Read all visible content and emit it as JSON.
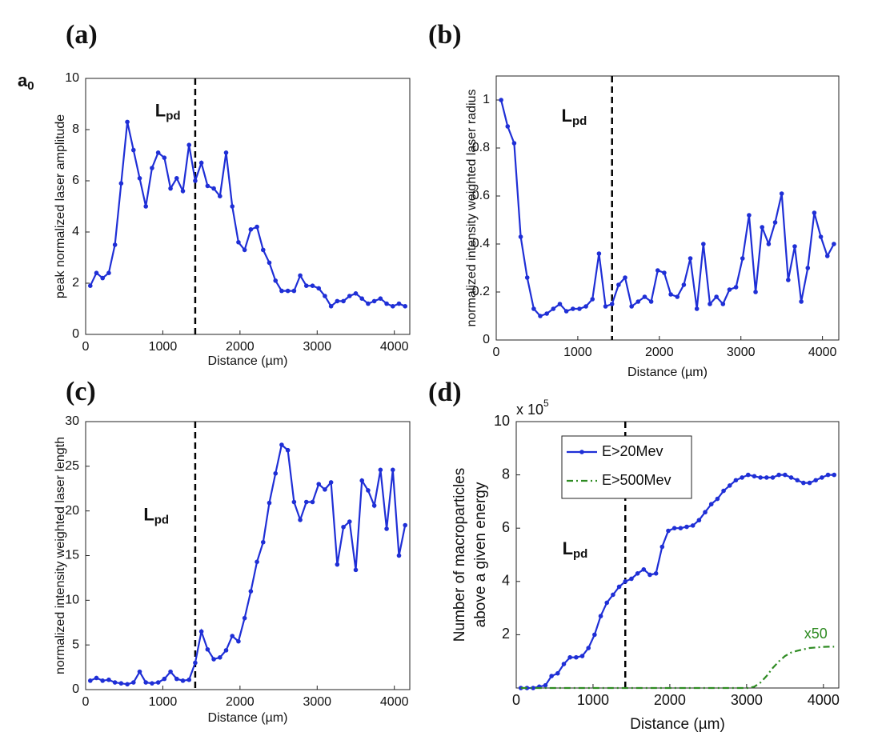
{
  "chart_data": [
    {
      "type": "line",
      "panel_label": "(a)",
      "ylabel": [
        "peak normalized laser amplitude"
      ],
      "xlabel": "Distance (µm)",
      "ylabel_symbol": {
        "text": "a",
        "subscript": "0"
      },
      "annotation": {
        "text": "L",
        "subscript": "pd",
        "x": 900,
        "y": 8.7
      },
      "vline": 1420,
      "xlim": [
        0,
        4200
      ],
      "xticks": [
        0,
        1000,
        2000,
        3000,
        4000
      ],
      "ylim": [
        0,
        10
      ],
      "yticks": [
        0,
        2,
        4,
        6,
        8,
        10
      ],
      "x": [
        60,
        140,
        220,
        300,
        380,
        460,
        540,
        620,
        700,
        780,
        860,
        940,
        1020,
        1100,
        1180,
        1260,
        1340,
        1420,
        1500,
        1580,
        1660,
        1740,
        1820,
        1900,
        1980,
        2060,
        2140,
        2220,
        2300,
        2380,
        2460,
        2540,
        2620,
        2700,
        2780,
        2860,
        2940,
        3020,
        3100,
        3180,
        3260,
        3340,
        3420,
        3500,
        3580,
        3660,
        3740,
        3820,
        3900,
        3980,
        4060,
        4140
      ],
      "series": [
        {
          "color": "#1f2fd6",
          "markers": true,
          "dash": "solid",
          "values": [
            1.9,
            2.4,
            2.2,
            2.4,
            3.5,
            5.9,
            8.3,
            7.2,
            6.1,
            5.0,
            6.5,
            7.1,
            6.9,
            5.7,
            6.1,
            5.6,
            7.4,
            6.0,
            6.7,
            5.8,
            5.7,
            5.4,
            7.1,
            5.0,
            3.6,
            3.3,
            4.1,
            4.2,
            3.3,
            2.8,
            2.1,
            1.7,
            1.7,
            1.7,
            2.3,
            1.9,
            1.9,
            1.8,
            1.5,
            1.1,
            1.3,
            1.3,
            1.5,
            1.6,
            1.4,
            1.2,
            1.3,
            1.4,
            1.2,
            1.1,
            1.2,
            1.1
          ]
        }
      ]
    },
    {
      "type": "line",
      "panel_label": "(b)",
      "ylabel": [
        "normalized intensity weighted laser radius"
      ],
      "xlabel": "Distance (µm)",
      "annotation": {
        "text": "L",
        "subscript": "pd",
        "x": 800,
        "y": 0.93
      },
      "vline": 1420,
      "xlim": [
        0,
        4200
      ],
      "xticks": [
        0,
        1000,
        2000,
        3000,
        4000
      ],
      "ylim": [
        0,
        1.1
      ],
      "yticks": [
        0,
        0.2,
        0.4,
        0.6,
        0.8,
        1
      ],
      "x": [
        60,
        140,
        220,
        300,
        380,
        460,
        540,
        620,
        700,
        780,
        860,
        940,
        1020,
        1100,
        1180,
        1260,
        1340,
        1420,
        1500,
        1580,
        1660,
        1740,
        1820,
        1900,
        1980,
        2060,
        2140,
        2220,
        2300,
        2380,
        2460,
        2540,
        2620,
        2700,
        2780,
        2860,
        2940,
        3020,
        3100,
        3180,
        3260,
        3340,
        3420,
        3500,
        3580,
        3660,
        3740,
        3820,
        3900,
        3980,
        4060,
        4140
      ],
      "series": [
        {
          "color": "#1f2fd6",
          "markers": true,
          "dash": "solid",
          "values": [
            1.0,
            0.89,
            0.82,
            0.43,
            0.26,
            0.13,
            0.1,
            0.11,
            0.13,
            0.15,
            0.12,
            0.13,
            0.13,
            0.14,
            0.17,
            0.36,
            0.14,
            0.15,
            0.23,
            0.26,
            0.14,
            0.16,
            0.18,
            0.16,
            0.29,
            0.28,
            0.19,
            0.18,
            0.23,
            0.34,
            0.13,
            0.4,
            0.15,
            0.18,
            0.15,
            0.21,
            0.22,
            0.34,
            0.52,
            0.2,
            0.47,
            0.4,
            0.49,
            0.61,
            0.25,
            0.39,
            0.16,
            0.3,
            0.53,
            0.43,
            0.35,
            0.4
          ]
        }
      ]
    },
    {
      "type": "line",
      "panel_label": "(c)",
      "ylabel": [
        "normalized intensity weighted laser length"
      ],
      "xlabel": "Distance (µm)",
      "annotation": {
        "text": "L",
        "subscript": "pd",
        "x": 750,
        "y": 19.5
      },
      "vline": 1420,
      "xlim": [
        0,
        4200
      ],
      "xticks": [
        0,
        1000,
        2000,
        3000,
        4000
      ],
      "ylim": [
        0,
        30
      ],
      "yticks": [
        0,
        5,
        10,
        15,
        20,
        25,
        30
      ],
      "x": [
        60,
        140,
        220,
        300,
        380,
        460,
        540,
        620,
        700,
        780,
        860,
        940,
        1020,
        1100,
        1180,
        1260,
        1340,
        1420,
        1500,
        1580,
        1660,
        1740,
        1820,
        1900,
        1980,
        2060,
        2140,
        2220,
        2300,
        2380,
        2460,
        2540,
        2620,
        2700,
        2780,
        2860,
        2940,
        3020,
        3100,
        3180,
        3260,
        3340,
        3420,
        3500,
        3580,
        3660,
        3740,
        3820,
        3900,
        3980,
        4060,
        4140
      ],
      "series": [
        {
          "color": "#1f2fd6",
          "markers": true,
          "dash": "solid",
          "values": [
            1.0,
            1.3,
            1.0,
            1.1,
            0.8,
            0.7,
            0.6,
            0.8,
            2.0,
            0.8,
            0.7,
            0.8,
            1.2,
            2.0,
            1.2,
            1.0,
            1.1,
            3.0,
            6.5,
            4.5,
            3.4,
            3.6,
            4.4,
            6.0,
            5.4,
            8.0,
            11.0,
            14.3,
            16.5,
            20.9,
            24.2,
            27.4,
            26.8,
            21.0,
            19.0,
            21.0,
            21.0,
            23.0,
            22.4,
            23.2,
            14.0,
            18.2,
            18.8,
            13.4,
            23.4,
            22.3,
            20.6,
            24.6,
            18.0,
            24.6,
            15.0,
            18.4
          ]
        }
      ]
    },
    {
      "type": "line",
      "panel_label": "(d)",
      "ylabel": [
        "Number of macroparticles",
        "above a given energy"
      ],
      "xlabel": "Distance (µm)",
      "y_scale_label": "x 10",
      "y_scale_power": "5",
      "annotation": {
        "text": "L",
        "subscript": "pd",
        "x": 600,
        "y": 5.2
      },
      "note": {
        "text": "x50",
        "color": "#2e8b22",
        "x": 3900,
        "y": 2.0
      },
      "vline": 1420,
      "legend": "upper left",
      "xlim": [
        0,
        4200
      ],
      "xticks": [
        0,
        1000,
        2000,
        3000,
        4000
      ],
      "ylim": [
        0,
        10
      ],
      "yticks": [
        2,
        4,
        6,
        8,
        10
      ],
      "x": [
        60,
        140,
        220,
        300,
        380,
        460,
        540,
        620,
        700,
        780,
        860,
        940,
        1020,
        1100,
        1180,
        1260,
        1340,
        1420,
        1500,
        1580,
        1660,
        1740,
        1820,
        1900,
        1980,
        2060,
        2140,
        2220,
        2300,
        2380,
        2460,
        2540,
        2620,
        2700,
        2780,
        2860,
        2940,
        3020,
        3100,
        3180,
        3260,
        3340,
        3420,
        3500,
        3580,
        3660,
        3740,
        3820,
        3900,
        3980,
        4060,
        4140
      ],
      "series": [
        {
          "name": "E>20Mev",
          "color": "#1f2fd6",
          "markers": true,
          "dash": "solid",
          "values": [
            0,
            0,
            0,
            0.05,
            0.1,
            0.45,
            0.55,
            0.9,
            1.15,
            1.15,
            1.2,
            1.5,
            2.0,
            2.7,
            3.2,
            3.5,
            3.8,
            4.0,
            4.1,
            4.3,
            4.45,
            4.25,
            4.3,
            5.3,
            5.9,
            6.0,
            6.0,
            6.05,
            6.1,
            6.3,
            6.6,
            6.9,
            7.1,
            7.4,
            7.6,
            7.8,
            7.9,
            8.0,
            7.95,
            7.9,
            7.9,
            7.9,
            8.0,
            8.0,
            7.9,
            7.8,
            7.7,
            7.7,
            7.8,
            7.9,
            8.0,
            8.0
          ]
        },
        {
          "name": "E>500Mev",
          "color": "#2e8b22",
          "markers": false,
          "dash": "dashdot",
          "values": [
            0,
            0,
            0,
            0,
            0,
            0,
            0,
            0,
            0,
            0,
            0,
            0,
            0,
            0,
            0,
            0,
            0,
            0,
            0,
            0,
            0,
            0,
            0,
            0,
            0,
            0,
            0,
            0,
            0,
            0,
            0,
            0,
            0,
            0,
            0,
            0,
            0,
            0,
            0.05,
            0.2,
            0.45,
            0.75,
            1.0,
            1.2,
            1.33,
            1.4,
            1.45,
            1.5,
            1.52,
            1.54,
            1.55,
            1.55
          ]
        }
      ]
    }
  ]
}
